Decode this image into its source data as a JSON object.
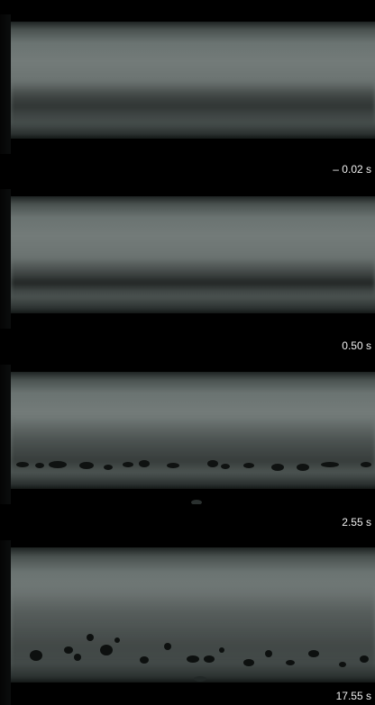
{
  "panels": [
    {
      "id": "p1",
      "time_label": "– 0.02 s"
    },
    {
      "id": "p2",
      "time_label": "0.50 s"
    },
    {
      "id": "p3",
      "time_label": "2.55 s"
    },
    {
      "id": "p4",
      "time_label": "17.55 s"
    }
  ]
}
